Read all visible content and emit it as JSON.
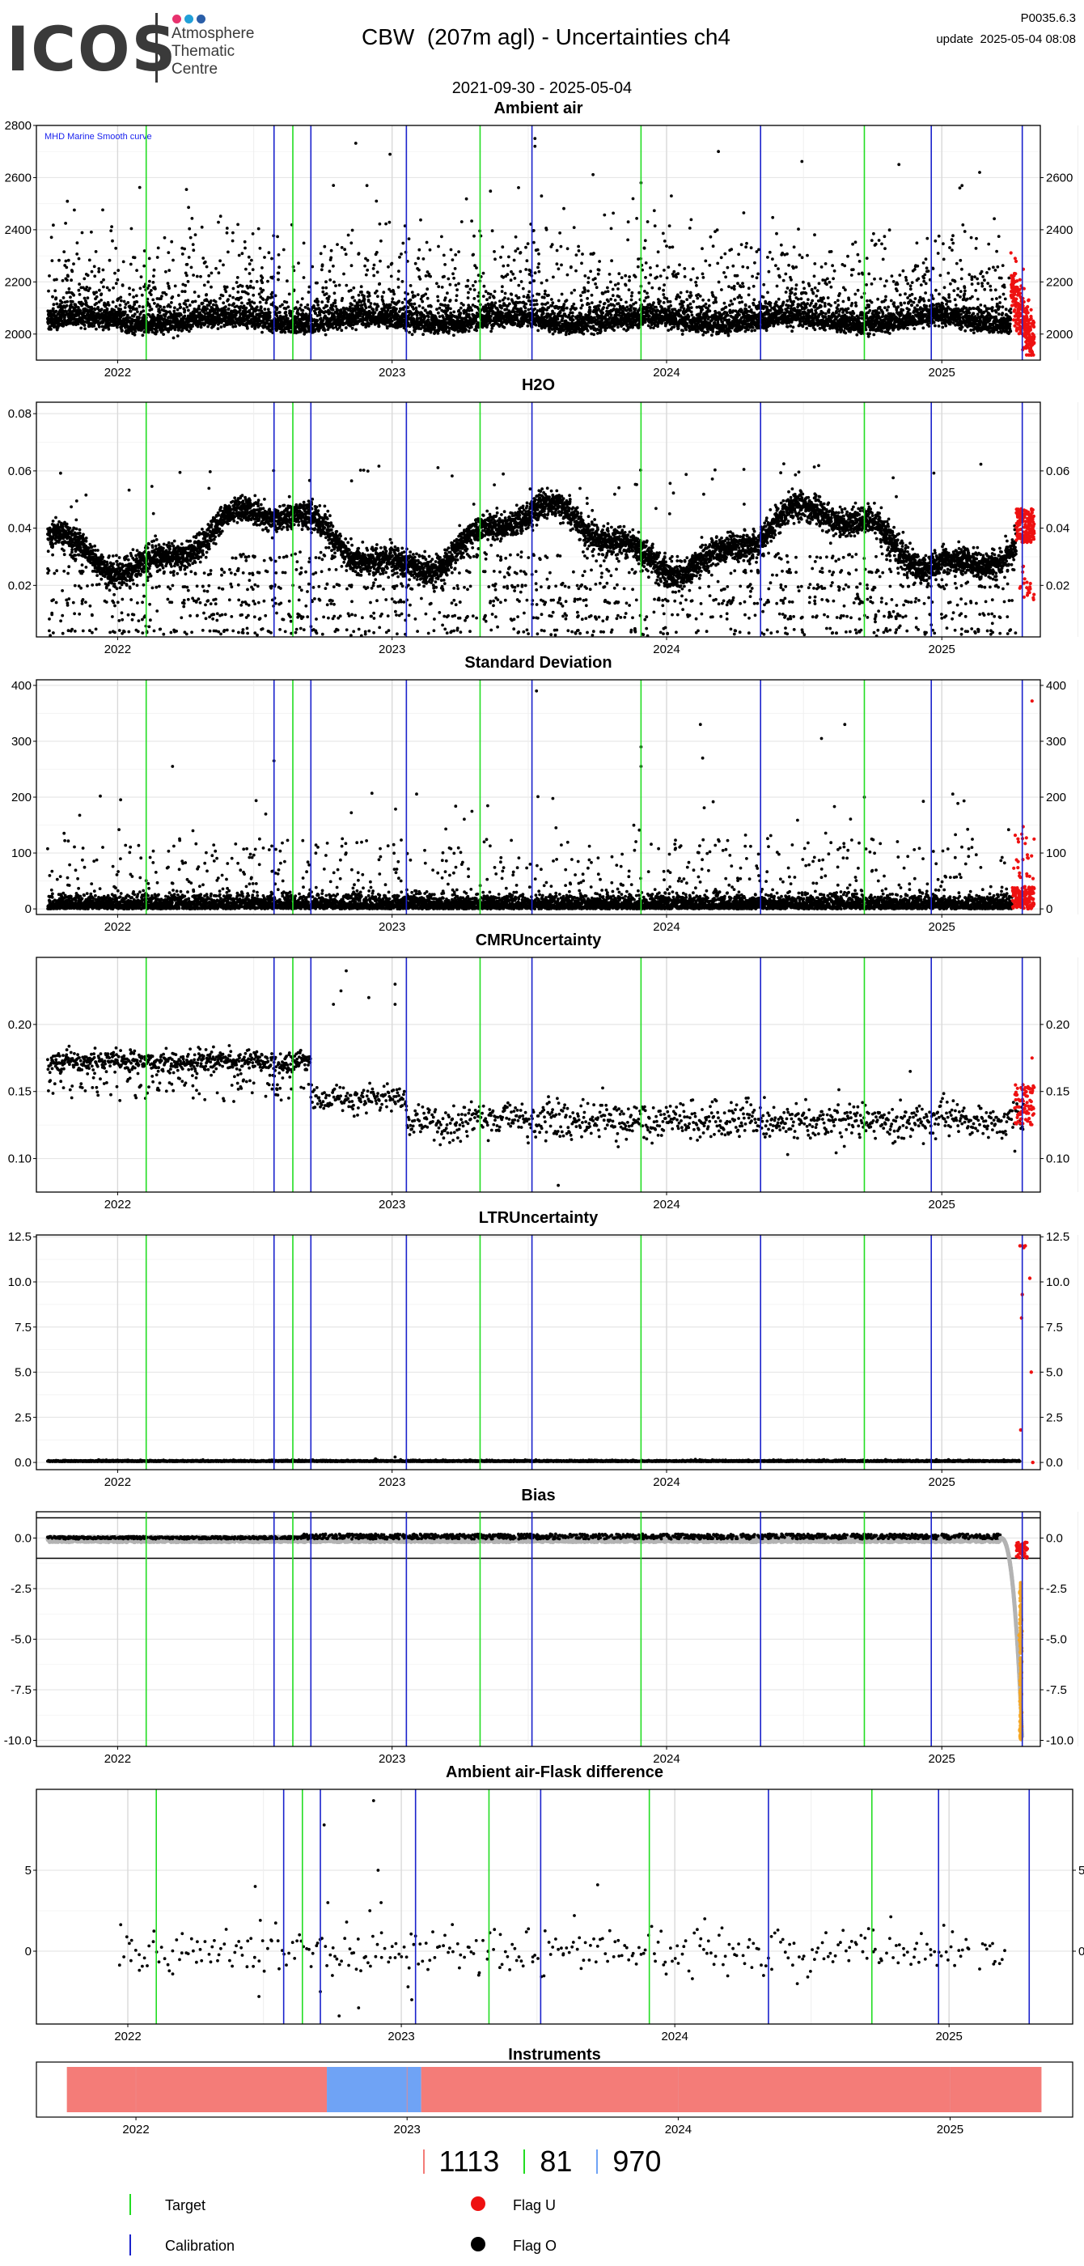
{
  "header": {
    "logo_text": "ICOS",
    "logo_sub": [
      "Atmosphere",
      "Thematic",
      "Centre"
    ],
    "logo_dot_colors": [
      "#e8326e",
      "#21a0d8",
      "#2a5ea8"
    ],
    "title": "CBW  (207m agl) - Uncertainties ch4",
    "date_range": "2021-09-30 - 2025-05-04",
    "version": "P0035.6.3",
    "update": "update  2025-05-04 08:08"
  },
  "colors": {
    "target": "#22dd22",
    "calibration": "#1a22cc",
    "flag_u": "#ee1111",
    "flag_o": "#000000",
    "bias_grey": "#b3b3b3",
    "bias_orange": "#f5a623",
    "instr_red": "#f47c78",
    "instr_blue": "#6fa3f5",
    "marine_label": "#1a22ee"
  },
  "event_lines": {
    "target": [
      "2022-02-08",
      "2022-08-22",
      "2023-04-28",
      "2023-11-28",
      "2024-09-20"
    ],
    "calibration": [
      "2022-07-28",
      "2022-09-15",
      "2023-01-20",
      "2023-07-06",
      "2024-05-05",
      "2024-12-18",
      "2025-04-18"
    ]
  },
  "chart_data": [
    {
      "type": "scatter",
      "title": "Ambient air",
      "annotation": "MHD Marine Smooth curve",
      "ylim": [
        1900,
        2800
      ],
      "yticks": [
        2000,
        2200,
        2400,
        2600,
        2800
      ],
      "yticks_right": [
        2000,
        2200,
        2400,
        2600
      ],
      "xticks": [
        "2022",
        "2023",
        "2024",
        "2025"
      ],
      "grid": true,
      "baseline": 2060,
      "spread": 45,
      "noise": 70,
      "ymin_clip": 1940,
      "outliers": [
        [
          "2022-06-10",
          2420
        ],
        [
          "2022-10-15",
          2570
        ],
        [
          "2023-07-10",
          2750
        ],
        [
          "2023-07-10",
          2720
        ],
        [
          "2023-11-28",
          2580
        ],
        [
          "2024-03-10",
          2700
        ],
        [
          "2024-11-05",
          2650
        ],
        [
          "2025-01-25",
          2560
        ]
      ],
      "flag_u_start": "2025-04-03",
      "flag_u_range": [
        1920,
        2440
      ]
    },
    {
      "type": "scatter",
      "title": "H2O",
      "ylim": [
        0.002,
        0.084
      ],
      "yticks": [
        0.02,
        0.04,
        0.06,
        0.08
      ],
      "yticks_right": [
        0.02,
        0.04,
        0.06
      ],
      "xticks": [
        "2022",
        "2023",
        "2024",
        "2025"
      ],
      "grid": true,
      "seasonal": {
        "mean": 0.036,
        "amp": 0.01,
        "peak": "07-20"
      },
      "spread": 0.004,
      "low_scatter": [
        0.004,
        0.03
      ],
      "flag_u_start": "2025-04-10",
      "flag_u_range": [
        0.01,
        0.055
      ]
    },
    {
      "type": "scatter",
      "title": "Standard Deviation",
      "ylim": [
        -10,
        410
      ],
      "yticks": [
        0,
        100,
        200,
        300,
        400
      ],
      "yticks_right": [
        0,
        100,
        200,
        300,
        400
      ],
      "xticks": [
        "2022",
        "2023",
        "2024",
        "2025"
      ],
      "grid": true,
      "baseline": 8,
      "spread": 12,
      "spikes_max": 210,
      "outliers": [
        [
          "2022-03-15",
          255
        ],
        [
          "2022-07-28",
          265
        ],
        [
          "2023-07-12",
          390
        ],
        [
          "2023-11-28",
          290
        ],
        [
          "2023-11-28",
          255
        ],
        [
          "2024-02-15",
          330
        ],
        [
          "2024-02-18",
          270
        ],
        [
          "2024-07-25",
          305
        ],
        [
          "2024-08-25",
          330
        ],
        [
          "2024-09-20",
          200
        ]
      ],
      "flag_u_start": "2025-04-05",
      "flag_u_range": [
        0,
        150
      ],
      "flag_u_extra": [
        [
          "2025-05-01",
          372
        ]
      ]
    },
    {
      "type": "scatter",
      "title": "CMRUncertainty",
      "ylim": [
        0.075,
        0.25
      ],
      "yticks": [
        0.1,
        0.15,
        0.2
      ],
      "yticks_right": [
        0.1,
        0.15,
        0.2
      ],
      "xticks": [
        "2022",
        "2023",
        "2024",
        "2025"
      ],
      "grid": true,
      "segments": [
        [
          "2021-09-30",
          "2022-09-15",
          0.172,
          0.004
        ],
        [
          "2022-09-15",
          "2023-01-20",
          0.145,
          0.005
        ],
        [
          "2023-01-20",
          "2025-04-20",
          0.128,
          0.007
        ]
      ],
      "outliers": [
        [
          "2022-10-15",
          0.215
        ],
        [
          "2022-10-25",
          0.225
        ],
        [
          "2022-11-01",
          0.24
        ],
        [
          "2022-12-01",
          0.22
        ],
        [
          "2023-01-05",
          0.215
        ],
        [
          "2023-01-05",
          0.23
        ],
        [
          "2023-08-10",
          0.08
        ],
        [
          "2024-06-10",
          0.103
        ],
        [
          "2024-11-20",
          0.165
        ]
      ],
      "flag_u_start": "2025-04-08",
      "flag_u_range": [
        0.125,
        0.155
      ],
      "flag_u_extra": [
        [
          "2025-05-01",
          0.175
        ]
      ]
    },
    {
      "type": "scatter",
      "title": "LTRUncertainty",
      "ylim": [
        -0.4,
        12.6
      ],
      "yticks": [
        0,
        2.5,
        5,
        7.5,
        10,
        12.5
      ],
      "ytick_labels": [
        "0.0",
        "2.5",
        "5.0",
        "7.5",
        "10.0",
        "12.5"
      ],
      "yticks_right": [
        0,
        2.5,
        5,
        7.5,
        10,
        12.5
      ],
      "xticks": [
        "2022",
        "2023",
        "2024",
        "2025"
      ],
      "grid": true,
      "baseline": 0.05,
      "flag_u_points": [
        [
          "2025-04-15",
          12.0
        ],
        [
          "2025-04-18",
          12.0
        ],
        [
          "2025-04-20",
          11.9
        ],
        [
          "2025-04-22",
          12.0
        ],
        [
          "2025-04-18",
          9.3
        ],
        [
          "2025-04-17",
          8.0
        ],
        [
          "2025-04-16",
          1.8
        ],
        [
          "2025-04-28",
          10.2
        ],
        [
          "2025-04-30",
          5.0
        ],
        [
          "2025-05-02",
          0.0
        ]
      ]
    },
    {
      "type": "scatter",
      "title": "Bias",
      "ylim": [
        -10.3,
        1.3
      ],
      "yticks": [
        -10,
        -7.5,
        -5,
        -2.5,
        0
      ],
      "ytick_labels": [
        "-10.0",
        "-7.5",
        "-5.0",
        "-2.5",
        "0.0"
      ],
      "yticks_right": [
        -10,
        -7.5,
        -5,
        -2.5,
        0
      ],
      "xticks": [
        "2022",
        "2023",
        "2024",
        "2025"
      ],
      "grid": true,
      "hlines": [
        1,
        -1
      ],
      "grey_band": [
        -0.15,
        0.12
      ],
      "black_band": [
        -0.05,
        0.2
      ],
      "drop_start": "2025-03-20",
      "drop_end": "2025-04-18",
      "drop_min": -9.9,
      "orange_range": [
        -10.0,
        -2.2
      ],
      "orange_date": "2025-04-16"
    },
    {
      "type": "scatter",
      "title": "Ambient air-Flask difference",
      "ylim": [
        -4.5,
        10
      ],
      "yticks": [
        0,
        5
      ],
      "yticks_right": [
        0,
        5
      ],
      "xticks": [
        "2022",
        "2023",
        "2024",
        "2025"
      ],
      "grid": true,
      "baseline": 0,
      "spread": 0.7,
      "outliers": [
        [
          "2022-06-20",
          4
        ],
        [
          "2022-06-25",
          -2.8
        ],
        [
          "2022-09-20",
          7.8
        ],
        [
          "2022-09-15",
          -2.5
        ],
        [
          "2022-09-25",
          3
        ],
        [
          "2022-10-01",
          -1.5
        ],
        [
          "2022-10-10",
          -4
        ],
        [
          "2022-10-20",
          1.8
        ],
        [
          "2022-11-05",
          -3.5
        ],
        [
          "2022-11-20",
          2.5
        ],
        [
          "2022-11-25",
          9.3
        ],
        [
          "2022-12-01",
          5
        ],
        [
          "2022-12-05",
          3
        ],
        [
          "2023-01-10",
          -2.2
        ],
        [
          "2023-01-15",
          -3
        ],
        [
          "2023-08-20",
          2.2
        ],
        [
          "2023-09-20",
          4.1
        ],
        [
          "2024-02-10",
          2
        ]
      ]
    }
  ],
  "instruments": {
    "title": "Instruments",
    "xticks": [
      "2022",
      "2023",
      "2024",
      "2025"
    ],
    "segments": [
      {
        "start": "2021-09-30",
        "end": "2022-09-15",
        "color": "red"
      },
      {
        "start": "2022-09-15",
        "end": "2023-01-20",
        "color": "blue"
      },
      {
        "start": "2023-01-20",
        "end": "2025-05-04",
        "color": "red"
      }
    ],
    "legend": [
      {
        "label": "1113",
        "color": "#f47c78"
      },
      {
        "label": "81",
        "color": "#22dd22"
      },
      {
        "label": "970",
        "color": "#6fa3f5"
      }
    ]
  },
  "legend": {
    "target": "Target",
    "calibration": "Calibration",
    "flag_u": "Flag U",
    "flag_o": "Flag O"
  }
}
